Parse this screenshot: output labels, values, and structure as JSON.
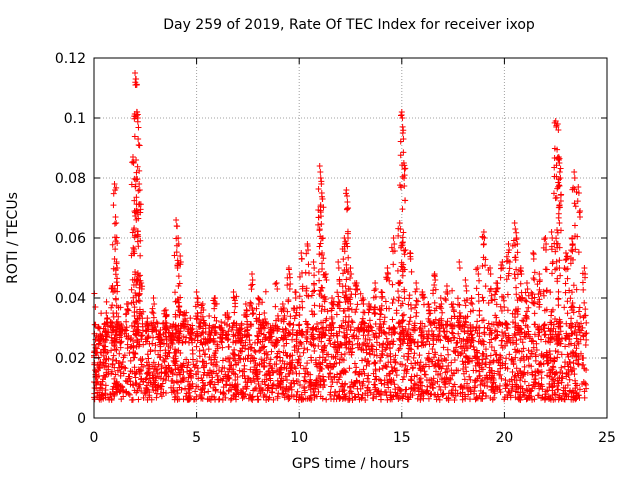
{
  "chart_data": {
    "type": "scatter",
    "title": "Day 259 of 2019, Rate Of TEC Index for receiver ixop",
    "xlabel": "GPS time / hours",
    "ylabel": "ROTI / TECUs",
    "xlim": [
      0,
      25
    ],
    "ylim": [
      0,
      0.12
    ],
    "xticks": [
      0,
      5,
      10,
      15,
      20,
      25
    ],
    "yticks": [
      0,
      0.02,
      0.04,
      0.06,
      0.08,
      0.1,
      0.12
    ],
    "xtick_labels": [
      "0",
      "5",
      "10",
      "15",
      "20",
      "25"
    ],
    "ytick_labels": [
      "0",
      "0.02",
      "0.04",
      "0.06",
      "0.08",
      "0.1",
      "0.12"
    ],
    "grid": true,
    "marker": "+",
    "color": "#ff0000",
    "series": [
      {
        "name": "ROTI",
        "x": [
          0.0,
          0.3,
          0.6,
          0.9,
          1.0,
          1.05,
          1.1,
          1.3,
          1.6,
          1.9,
          2.0,
          2.05,
          2.1,
          2.15,
          2.2,
          2.3,
          2.6,
          2.9,
          3.2,
          3.5,
          3.8,
          4.0,
          4.1,
          4.2,
          4.4,
          4.7,
          5.0,
          5.3,
          5.6,
          5.9,
          6.2,
          6.5,
          6.8,
          7.1,
          7.4,
          7.7,
          8.0,
          8.3,
          8.6,
          8.9,
          9.2,
          9.5,
          9.8,
          10.1,
          10.4,
          10.7,
          11.0,
          11.05,
          11.1,
          11.3,
          11.6,
          11.9,
          12.2,
          12.3,
          12.35,
          12.5,
          12.8,
          13.1,
          13.4,
          13.7,
          14.0,
          14.3,
          14.6,
          14.9,
          15.0,
          15.05,
          15.1,
          15.4,
          15.7,
          16.0,
          16.3,
          16.6,
          16.9,
          17.2,
          17.5,
          17.8,
          18.1,
          18.4,
          18.7,
          19.0,
          19.3,
          19.6,
          19.9,
          20.2,
          20.5,
          20.6,
          20.8,
          21.1,
          21.4,
          21.7,
          22.0,
          22.3,
          22.5,
          22.6,
          22.65,
          22.7,
          23.0,
          23.3,
          23.4,
          23.6,
          23.9
        ],
        "y": [
          0.012,
          0.028,
          0.035,
          0.044,
          0.078,
          0.067,
          0.052,
          0.03,
          0.038,
          0.087,
          0.115,
          0.113,
          0.102,
          0.093,
          0.078,
          0.045,
          0.032,
          0.04,
          0.028,
          0.036,
          0.03,
          0.066,
          0.06,
          0.054,
          0.035,
          0.03,
          0.042,
          0.038,
          0.028,
          0.04,
          0.032,
          0.035,
          0.042,
          0.03,
          0.038,
          0.048,
          0.04,
          0.035,
          0.03,
          0.045,
          0.038,
          0.05,
          0.042,
          0.055,
          0.058,
          0.052,
          0.084,
          0.08,
          0.075,
          0.048,
          0.04,
          0.052,
          0.06,
          0.076,
          0.072,
          0.05,
          0.045,
          0.04,
          0.038,
          0.045,
          0.042,
          0.05,
          0.06,
          0.065,
          0.102,
          0.095,
          0.085,
          0.055,
          0.045,
          0.042,
          0.038,
          0.048,
          0.04,
          0.044,
          0.038,
          0.052,
          0.046,
          0.04,
          0.05,
          0.062,
          0.05,
          0.045,
          0.052,
          0.058,
          0.065,
          0.06,
          0.05,
          0.045,
          0.055,
          0.048,
          0.06,
          0.062,
          0.099,
          0.098,
          0.087,
          0.082,
          0.055,
          0.06,
          0.082,
          0.077,
          0.05
        ]
      }
    ],
    "density_note": "dense band of points between 0.005 and 0.03 TECU across entire day"
  }
}
